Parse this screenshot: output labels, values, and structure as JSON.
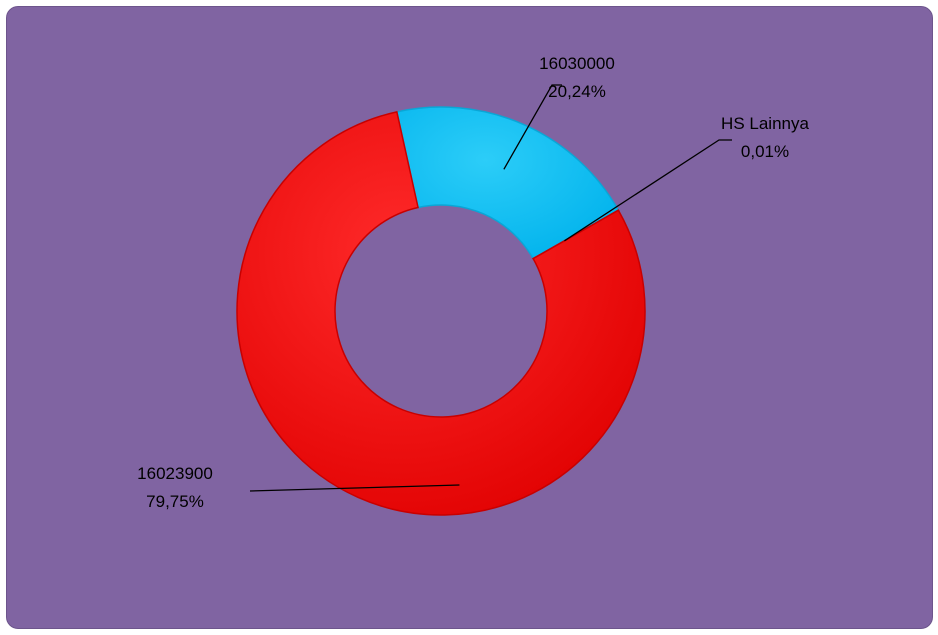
{
  "chart_data": {
    "type": "pie",
    "donut": true,
    "title": "",
    "legend": "none",
    "slices": [
      {
        "label": "16030000",
        "value": 20.24,
        "value_label": "20,24%",
        "color": "#00bff3"
      },
      {
        "label": "HS Lainnya",
        "value": 0.01,
        "value_label": "0,01%",
        "color": "#e60000"
      },
      {
        "label": "16023900",
        "value": 79.75,
        "value_label": "79,75%",
        "color": "#ff0000"
      }
    ],
    "start_angle_deg": -12.5
  },
  "colors": {
    "background": "#8064a2",
    "slice_edge": "#c80000"
  }
}
